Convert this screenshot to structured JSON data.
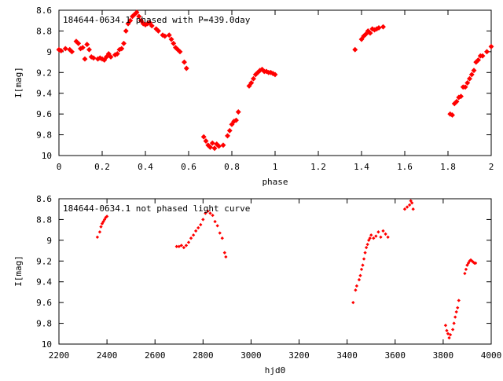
{
  "colors": {
    "points": "#ff0000",
    "axes": "#000000",
    "background": "#ffffff"
  },
  "chart_data": [
    {
      "type": "scatter",
      "title": "184644-0634.1 phased with P=439.0day",
      "xlabel": "phase",
      "ylabel": "I[mag]",
      "xlim": [
        0,
        2
      ],
      "ylim": [
        8.6,
        10
      ],
      "y_inverted": true,
      "grid": false,
      "x_ticks": [
        "0",
        "0.2",
        "0.4",
        "0.6",
        "0.8",
        "1",
        "1.2",
        "1.4",
        "1.6",
        "1.8",
        "2"
      ],
      "x_tick_values": [
        0,
        0.2,
        0.4,
        0.6,
        0.8,
        1,
        1.2,
        1.4,
        1.6,
        1.8,
        2
      ],
      "y_ticks": [
        "8.6",
        "8.8",
        "9",
        "9.2",
        "9.4",
        "9.6",
        "9.8",
        "10"
      ],
      "y_tick_values": [
        8.6,
        8.8,
        9,
        9.2,
        9.4,
        9.6,
        9.8,
        10
      ],
      "series": [
        {
          "points": [
            [
              0.0,
              8.98
            ],
            [
              0.01,
              8.99
            ],
            [
              0.03,
              8.97
            ],
            [
              0.05,
              8.98
            ],
            [
              0.06,
              9.0
            ],
            [
              0.08,
              8.9
            ],
            [
              0.09,
              8.92
            ],
            [
              0.1,
              8.97
            ],
            [
              0.11,
              8.96
            ],
            [
              0.12,
              9.07
            ],
            [
              0.13,
              8.93
            ],
            [
              0.14,
              8.98
            ],
            [
              0.15,
              9.05
            ],
            [
              0.16,
              9.06
            ],
            [
              0.18,
              9.07
            ],
            [
              0.19,
              9.06
            ],
            [
              0.2,
              9.07
            ],
            [
              0.21,
              9.08
            ],
            [
              0.22,
              9.05
            ],
            [
              0.23,
              9.02
            ],
            [
              0.24,
              9.05
            ],
            [
              0.26,
              9.03
            ],
            [
              0.27,
              9.02
            ],
            [
              0.28,
              8.98
            ],
            [
              0.29,
              8.97
            ],
            [
              0.3,
              8.92
            ],
            [
              0.31,
              8.8
            ],
            [
              0.32,
              8.73
            ],
            [
              0.33,
              8.7
            ],
            [
              0.34,
              8.66
            ],
            [
              0.35,
              8.64
            ],
            [
              0.36,
              8.62
            ],
            [
              0.37,
              8.66
            ],
            [
              0.38,
              8.7
            ],
            [
              0.39,
              8.73
            ],
            [
              0.4,
              8.74
            ],
            [
              0.41,
              8.73
            ],
            [
              0.42,
              8.72
            ],
            [
              0.43,
              8.75
            ],
            [
              0.45,
              8.78
            ],
            [
              0.46,
              8.8
            ],
            [
              0.48,
              8.84
            ],
            [
              0.49,
              8.85
            ],
            [
              0.51,
              8.84
            ],
            [
              0.52,
              8.88
            ],
            [
              0.53,
              8.92
            ],
            [
              0.54,
              8.96
            ],
            [
              0.55,
              8.98
            ],
            [
              0.56,
              9.0
            ],
            [
              0.58,
              9.1
            ],
            [
              0.59,
              9.16
            ],
            [
              0.67,
              9.82
            ],
            [
              0.68,
              9.86
            ],
            [
              0.69,
              9.9
            ],
            [
              0.7,
              9.92
            ],
            [
              0.71,
              9.88
            ],
            [
              0.72,
              9.93
            ],
            [
              0.73,
              9.89
            ],
            [
              0.74,
              9.91
            ],
            [
              0.76,
              9.9
            ],
            [
              0.78,
              9.81
            ],
            [
              0.79,
              9.76
            ],
            [
              0.8,
              9.7
            ],
            [
              0.81,
              9.67
            ],
            [
              0.82,
              9.66
            ],
            [
              0.83,
              9.58
            ],
            [
              0.88,
              9.33
            ],
            [
              0.89,
              9.3
            ],
            [
              0.9,
              9.26
            ],
            [
              0.91,
              9.22
            ],
            [
              0.92,
              9.2
            ],
            [
              0.93,
              9.18
            ],
            [
              0.94,
              9.17
            ],
            [
              0.95,
              9.19
            ],
            [
              0.96,
              9.19
            ],
            [
              0.97,
              9.2
            ],
            [
              0.98,
              9.2
            ],
            [
              0.99,
              9.21
            ],
            [
              1.0,
              9.22
            ],
            [
              1.37,
              8.98
            ],
            [
              1.4,
              8.88
            ],
            [
              1.41,
              8.85
            ],
            [
              1.42,
              8.83
            ],
            [
              1.43,
              8.8
            ],
            [
              1.44,
              8.82
            ],
            [
              1.45,
              8.78
            ],
            [
              1.46,
              8.79
            ],
            [
              1.47,
              8.78
            ],
            [
              1.48,
              8.77
            ],
            [
              1.5,
              8.76
            ],
            [
              1.81,
              9.6
            ],
            [
              1.82,
              9.61
            ],
            [
              1.83,
              9.5
            ],
            [
              1.84,
              9.48
            ],
            [
              1.85,
              9.44
            ],
            [
              1.86,
              9.43
            ],
            [
              1.87,
              9.34
            ],
            [
              1.88,
              9.34
            ],
            [
              1.89,
              9.3
            ],
            [
              1.9,
              9.26
            ],
            [
              1.91,
              9.22
            ],
            [
              1.92,
              9.18
            ],
            [
              1.93,
              9.1
            ],
            [
              1.94,
              9.08
            ],
            [
              1.95,
              9.04
            ],
            [
              1.96,
              9.04
            ],
            [
              1.98,
              9.0
            ],
            [
              2.0,
              8.95
            ]
          ]
        }
      ]
    },
    {
      "type": "scatter",
      "title": "184644-0634.1 not phased light curve",
      "xlabel": "hjd0",
      "ylabel": "I[mag]",
      "xlim": [
        2200,
        4000
      ],
      "ylim": [
        8.6,
        10
      ],
      "y_inverted": true,
      "grid": false,
      "x_ticks": [
        "2200",
        "2400",
        "2600",
        "2800",
        "3000",
        "3200",
        "3400",
        "3600",
        "3800",
        "4000"
      ],
      "x_tick_values": [
        2200,
        2400,
        2600,
        2800,
        3000,
        3200,
        3400,
        3600,
        3800,
        4000
      ],
      "y_ticks": [
        "8.6",
        "8.8",
        "9",
        "9.2",
        "9.4",
        "9.6",
        "9.8",
        "10"
      ],
      "y_tick_values": [
        8.6,
        8.8,
        9,
        9.2,
        9.4,
        9.6,
        9.8,
        10
      ],
      "series": [
        {
          "points": [
            [
              2360,
              8.97
            ],
            [
              2370,
              8.92
            ],
            [
              2375,
              8.87
            ],
            [
              2380,
              8.84
            ],
            [
              2385,
              8.82
            ],
            [
              2390,
              8.8
            ],
            [
              2395,
              8.78
            ],
            [
              2400,
              8.77
            ],
            [
              2690,
              9.06
            ],
            [
              2700,
              9.06
            ],
            [
              2710,
              9.05
            ],
            [
              2720,
              9.07
            ],
            [
              2730,
              9.05
            ],
            [
              2740,
              9.02
            ],
            [
              2750,
              8.98
            ],
            [
              2760,
              8.95
            ],
            [
              2770,
              8.91
            ],
            [
              2780,
              8.88
            ],
            [
              2790,
              8.85
            ],
            [
              2800,
              8.8
            ],
            [
              2810,
              8.74
            ],
            [
              2820,
              8.72
            ],
            [
              2830,
              8.74
            ],
            [
              2840,
              8.76
            ],
            [
              2850,
              8.82
            ],
            [
              2860,
              8.86
            ],
            [
              2870,
              8.93
            ],
            [
              2880,
              8.98
            ],
            [
              2890,
              9.12
            ],
            [
              2895,
              9.16
            ],
            [
              3425,
              9.6
            ],
            [
              3435,
              9.48
            ],
            [
              3440,
              9.44
            ],
            [
              3450,
              9.38
            ],
            [
              3455,
              9.34
            ],
            [
              3460,
              9.28
            ],
            [
              3465,
              9.24
            ],
            [
              3470,
              9.18
            ],
            [
              3475,
              9.12
            ],
            [
              3480,
              9.07
            ],
            [
              3485,
              9.04
            ],
            [
              3490,
              9.0
            ],
            [
              3495,
              8.98
            ],
            [
              3500,
              8.95
            ],
            [
              3510,
              8.98
            ],
            [
              3520,
              8.96
            ],
            [
              3530,
              8.92
            ],
            [
              3540,
              8.97
            ],
            [
              3550,
              8.91
            ],
            [
              3560,
              8.94
            ],
            [
              3570,
              8.97
            ],
            [
              3640,
              8.7
            ],
            [
              3650,
              8.68
            ],
            [
              3660,
              8.66
            ],
            [
              3665,
              8.62
            ],
            [
              3670,
              8.64
            ],
            [
              3675,
              8.7
            ],
            [
              3810,
              9.82
            ],
            [
              3815,
              9.87
            ],
            [
              3820,
              9.9
            ],
            [
              3825,
              9.94
            ],
            [
              3830,
              9.91
            ],
            [
              3840,
              9.86
            ],
            [
              3845,
              9.8
            ],
            [
              3850,
              9.74
            ],
            [
              3855,
              9.69
            ],
            [
              3860,
              9.65
            ],
            [
              3865,
              9.58
            ],
            [
              3890,
              9.32
            ],
            [
              3895,
              9.28
            ],
            [
              3900,
              9.24
            ],
            [
              3905,
              9.22
            ],
            [
              3910,
              9.2
            ],
            [
              3915,
              9.19
            ],
            [
              3920,
              9.2
            ],
            [
              3925,
              9.21
            ],
            [
              3930,
              9.22
            ],
            [
              3935,
              9.22
            ]
          ]
        }
      ]
    }
  ]
}
